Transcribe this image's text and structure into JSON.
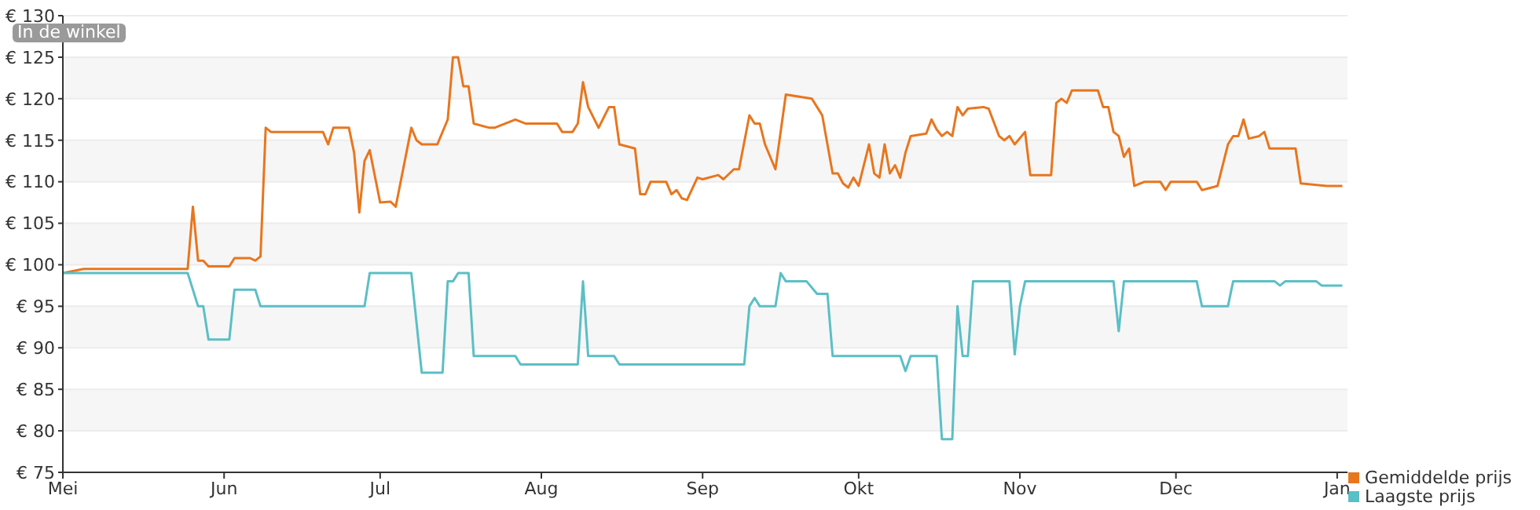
{
  "chart_data": {
    "type": "line",
    "annotations": [
      "In de winkel"
    ],
    "categories": [
      "Mei",
      null,
      null,
      null,
      null,
      null,
      null,
      null,
      null,
      null,
      null,
      null,
      null,
      null,
      null,
      null,
      null,
      null,
      null,
      null,
      null,
      null,
      null,
      null,
      null,
      null,
      null,
      null,
      null,
      null,
      null,
      "Jun",
      null,
      null,
      null,
      null,
      null,
      null,
      null,
      null,
      null,
      null,
      null,
      null,
      null,
      null,
      null,
      null,
      null,
      null,
      null,
      null,
      null,
      null,
      null,
      null,
      null,
      null,
      null,
      null,
      null,
      "Jul",
      null,
      null,
      null,
      null,
      null,
      null,
      null,
      null,
      null,
      null,
      null,
      null,
      null,
      null,
      null,
      null,
      null,
      null,
      null,
      null,
      null,
      null,
      null,
      null,
      null,
      null,
      null,
      null,
      null,
      null,
      "Aug",
      null,
      null,
      null,
      null,
      null,
      null,
      null,
      null,
      null,
      null,
      null,
      null,
      null,
      null,
      null,
      null,
      null,
      null,
      null,
      null,
      null,
      null,
      null,
      null,
      null,
      null,
      null,
      null,
      null,
      null,
      "Sep",
      null,
      null,
      null,
      null,
      null,
      null,
      null,
      null,
      null,
      null,
      null,
      null,
      null,
      null,
      null,
      null,
      null,
      null,
      null,
      null,
      null,
      null,
      null,
      null,
      null,
      null,
      null,
      null,
      null,
      "Okt",
      null,
      null,
      null,
      null,
      null,
      null,
      null,
      null,
      null,
      null,
      null,
      null,
      null,
      null,
      null,
      null,
      null,
      null,
      null,
      null,
      null,
      null,
      null,
      null,
      null,
      null,
      null,
      null,
      null,
      null,
      "Nov",
      null,
      null,
      null,
      null,
      null,
      null,
      null,
      null,
      null,
      null,
      null,
      null,
      null,
      null,
      null,
      null,
      null,
      null,
      null,
      null,
      null,
      null,
      null,
      null,
      null,
      null,
      null,
      null,
      null,
      "Dec",
      null,
      null,
      null,
      null,
      null,
      null,
      null,
      null,
      null,
      null,
      null,
      null,
      null,
      null,
      null,
      null,
      null,
      null,
      null,
      null,
      null,
      null,
      null,
      null,
      null,
      null,
      null,
      null,
      null,
      null,
      "Jan",
      null,
      null
    ],
    "ylim": [
      75,
      130
    ],
    "yticks": [
      {
        "value": 75,
        "label": "€ 75"
      },
      {
        "value": 80,
        "label": "€ 80"
      },
      {
        "value": 85,
        "label": "€ 85"
      },
      {
        "value": 90,
        "label": "€ 90"
      },
      {
        "value": 95,
        "label": "€ 95"
      },
      {
        "value": 100,
        "label": "€ 100"
      },
      {
        "value": 105,
        "label": "€ 105"
      },
      {
        "value": 110,
        "label": "€ 110"
      },
      {
        "value": 115,
        "label": "€ 115"
      },
      {
        "value": 120,
        "label": "€ 120"
      },
      {
        "value": 125,
        "label": "€ 125"
      },
      {
        "value": 130,
        "label": "€ 130"
      }
    ],
    "grid": "y",
    "legend": "bottom right",
    "marker": "none",
    "line_style": "solid",
    "series": [
      {
        "name": "Gemiddelde prijs",
        "color": "#e8761e",
        "values": [
          99,
          null,
          null,
          null,
          99.5,
          null,
          null,
          null,
          null,
          null,
          null,
          null,
          null,
          null,
          null,
          null,
          null,
          null,
          null,
          null,
          null,
          null,
          null,
          null,
          99.5,
          107,
          100.5,
          100.5,
          99.8,
          null,
          null,
          null,
          99.8,
          100.8,
          null,
          null,
          100.8,
          100.5,
          101,
          116.5,
          116,
          null,
          null,
          null,
          null,
          null,
          null,
          null,
          null,
          null,
          116,
          114.5,
          116.5,
          null,
          null,
          116.5,
          113.5,
          106.3,
          112.5,
          113.8,
          null,
          107.5,
          null,
          107.6,
          107,
          null,
          null,
          116.5,
          115,
          114.5,
          null,
          null,
          114.5,
          null,
          117.5,
          125,
          125,
          121.5,
          121.5,
          117,
          null,
          null,
          116.5,
          116.5,
          null,
          117,
          null,
          117.5,
          null,
          117,
          null,
          null,
          null,
          null,
          null,
          117,
          116,
          null,
          116,
          117,
          122,
          119,
          null,
          116.5,
          null,
          119,
          119,
          114.5,
          null,
          null,
          114,
          108.5,
          108.5,
          110,
          null,
          null,
          110,
          108.5,
          109,
          108,
          107.8,
          null,
          110.5,
          110.3,
          null,
          null,
          110.8,
          110.3,
          null,
          111.5,
          111.5,
          null,
          118,
          117,
          117,
          114.5,
          null,
          111.5,
          null,
          120.5,
          null,
          null,
          null,
          null,
          120,
          119,
          118,
          null,
          111,
          111,
          109.8,
          109.3,
          110.5,
          109.5,
          null,
          114.5,
          111,
          110.5,
          114.5,
          111,
          112,
          110.5,
          113.5,
          115.5,
          null,
          null,
          115.8,
          117.5,
          116.3,
          115.5,
          116,
          115.5,
          119,
          118,
          118.8,
          null,
          null,
          119,
          118.8,
          null,
          115.5,
          115,
          115.5,
          114.5,
          null,
          116,
          110.8,
          null,
          null,
          null,
          110.8,
          119.5,
          120,
          119.5,
          121,
          null,
          null,
          null,
          null,
          121,
          119,
          119,
          116,
          115.5,
          113,
          114,
          109.5,
          null,
          110,
          null,
          null,
          110,
          109,
          110,
          null,
          null,
          null,
          null,
          110,
          109,
          null,
          null,
          109.5,
          null,
          114.5,
          115.5,
          115.5,
          117.5,
          115.2,
          null,
          115.5,
          116,
          114,
          114,
          null,
          null,
          null,
          114,
          109.8,
          null,
          null,
          null,
          null,
          109.5,
          null,
          null,
          109.5,
          null
        ]
      },
      {
        "name": "Laagste prijs",
        "color": "#5bbfc6",
        "values": [
          99,
          null,
          null,
          null,
          null,
          null,
          null,
          null,
          null,
          null,
          null,
          null,
          null,
          null,
          null,
          null,
          null,
          null,
          null,
          null,
          null,
          null,
          null,
          null,
          99,
          null,
          95,
          95,
          91,
          null,
          null,
          null,
          91,
          97,
          null,
          null,
          null,
          97,
          95,
          null,
          null,
          null,
          null,
          null,
          null,
          null,
          null,
          null,
          null,
          null,
          null,
          null,
          null,
          null,
          null,
          null,
          null,
          null,
          95,
          99,
          null,
          null,
          null,
          null,
          null,
          null,
          null,
          99,
          null,
          87,
          null,
          null,
          null,
          87,
          98,
          98,
          99,
          null,
          99,
          89,
          null,
          null,
          null,
          null,
          null,
          null,
          null,
          89,
          88,
          null,
          null,
          null,
          null,
          null,
          null,
          null,
          null,
          null,
          null,
          88,
          98,
          89,
          null,
          null,
          null,
          null,
          89,
          88,
          null,
          null,
          null,
          null,
          null,
          null,
          null,
          null,
          null,
          null,
          null,
          null,
          null,
          null,
          null,
          null,
          null,
          null,
          null,
          null,
          null,
          null,
          null,
          88,
          95,
          96,
          95,
          null,
          null,
          95,
          99,
          98,
          null,
          null,
          null,
          98,
          null,
          96.5,
          null,
          96.5,
          89,
          null,
          null,
          null,
          null,
          null,
          null,
          null,
          null,
          null,
          null,
          null,
          null,
          89,
          87.2,
          89,
          null,
          null,
          null,
          null,
          89,
          79,
          null,
          79,
          95,
          89,
          89,
          98,
          null,
          null,
          null,
          null,
          null,
          null,
          98,
          89.2,
          95,
          98,
          null,
          null,
          null,
          null,
          null,
          null,
          null,
          null,
          null,
          null,
          null,
          null,
          null,
          null,
          null,
          null,
          98,
          92,
          98,
          null,
          null,
          null,
          null,
          null,
          null,
          null,
          null,
          null,
          null,
          null,
          null,
          null,
          98,
          95,
          null,
          null,
          null,
          null,
          95,
          98,
          null,
          null,
          null,
          null,
          null,
          null,
          null,
          98,
          97.5,
          98,
          null,
          null,
          null,
          null,
          null,
          98,
          97.5,
          null,
          null,
          null,
          97.5,
          null
        ]
      }
    ]
  }
}
